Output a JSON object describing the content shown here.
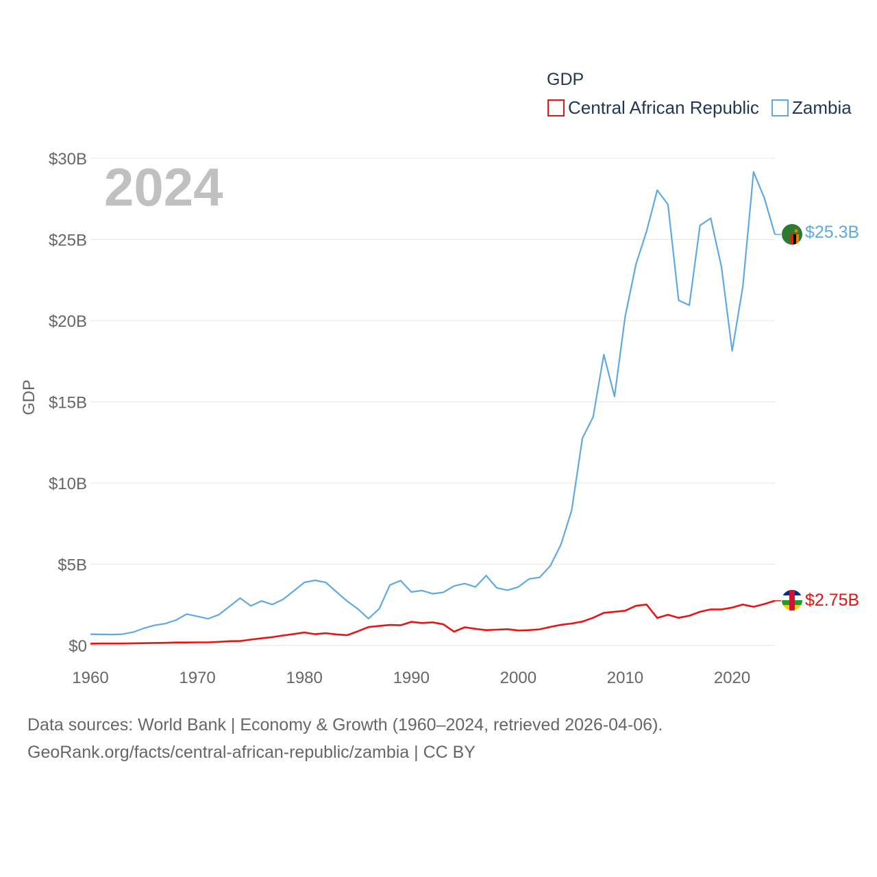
{
  "chart_data": {
    "type": "line",
    "legend_title": "GDP",
    "ylabel": "GDP",
    "year_label": "2024",
    "xlim": [
      1960,
      2024
    ],
    "ylim": [
      0,
      30
    ],
    "x_ticks": [
      1960,
      1970,
      1980,
      1990,
      2000,
      2010,
      2020
    ],
    "x_tick_labels": [
      "1960",
      "1970",
      "1980",
      "1990",
      "2000",
      "2010",
      "2020"
    ],
    "y_ticks": [
      0,
      5,
      10,
      15,
      20,
      25,
      30
    ],
    "y_tick_labels": [
      "$0",
      "$5B",
      "$10B",
      "$15B",
      "$20B",
      "$25B",
      "$30B"
    ],
    "x": [
      1960,
      1961,
      1962,
      1963,
      1964,
      1965,
      1966,
      1967,
      1968,
      1969,
      1970,
      1971,
      1972,
      1973,
      1974,
      1975,
      1976,
      1977,
      1978,
      1979,
      1980,
      1981,
      1982,
      1983,
      1984,
      1985,
      1986,
      1987,
      1988,
      1989,
      1990,
      1991,
      1992,
      1993,
      1994,
      1995,
      1996,
      1997,
      1998,
      1999,
      2000,
      2001,
      2002,
      2003,
      2004,
      2005,
      2006,
      2007,
      2008,
      2009,
      2010,
      2011,
      2012,
      2013,
      2014,
      2015,
      2016,
      2017,
      2018,
      2019,
      2020,
      2021,
      2022,
      2023,
      2024
    ],
    "series": [
      {
        "name": "Central African Republic",
        "color": "#ee1111",
        "end_label": "$2.75B",
        "values": [
          0.11,
          0.12,
          0.12,
          0.12,
          0.13,
          0.14,
          0.15,
          0.16,
          0.18,
          0.18,
          0.19,
          0.19,
          0.22,
          0.26,
          0.27,
          0.36,
          0.44,
          0.51,
          0.61,
          0.7,
          0.8,
          0.69,
          0.75,
          0.68,
          0.63,
          0.87,
          1.13,
          1.2,
          1.26,
          1.24,
          1.45,
          1.38,
          1.42,
          1.3,
          0.85,
          1.12,
          1.02,
          0.94,
          0.97,
          1.0,
          0.92,
          0.94,
          0.99,
          1.14,
          1.27,
          1.35,
          1.47,
          1.7,
          2.01,
          2.07,
          2.14,
          2.44,
          2.52,
          1.69,
          1.89,
          1.7,
          1.83,
          2.07,
          2.22,
          2.22,
          2.33,
          2.52,
          2.38,
          2.55,
          2.75
        ]
      },
      {
        "name": "Zambia",
        "color": "#5ea8e6",
        "end_label": "$25.3B",
        "values": [
          0.69,
          0.68,
          0.67,
          0.69,
          0.82,
          1.06,
          1.24,
          1.34,
          1.56,
          1.93,
          1.79,
          1.64,
          1.89,
          2.4,
          2.91,
          2.43,
          2.74,
          2.52,
          2.83,
          3.35,
          3.88,
          4.01,
          3.88,
          3.3,
          2.73,
          2.25,
          1.65,
          2.26,
          3.72,
          3.99,
          3.29,
          3.38,
          3.18,
          3.27,
          3.66,
          3.81,
          3.6,
          4.3,
          3.54,
          3.4,
          3.6,
          4.09,
          4.19,
          4.9,
          6.22,
          8.33,
          12.76,
          14.06,
          17.91,
          15.33,
          20.27,
          23.46,
          25.5,
          28.04,
          27.15,
          21.25,
          20.95,
          25.87,
          26.31,
          23.31,
          18.14,
          22.1,
          29.16,
          27.58,
          25.31
        ]
      }
    ]
  },
  "footer": {
    "line1": "Data sources: World Bank | Economy & Growth (1960–2024, retrieved 2026-04-06).",
    "line2": "GeoRank.org/facts/central-african-republic/zambia | CC BY"
  }
}
